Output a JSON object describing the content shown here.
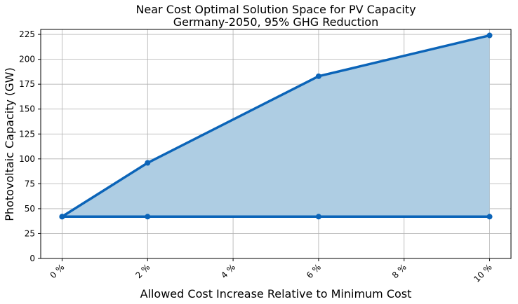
{
  "chart_data": {
    "type": "area",
    "title_lines": [
      "Near Cost Optimal Solution Space for PV Capacity",
      "Germany-2050, 95% GHG Reduction"
    ],
    "xlabel": "Allowed Cost Increase Relative to Minimum Cost",
    "ylabel": "Photovoltaic Capacity (GW)",
    "xlim": [
      -0.5,
      10.5
    ],
    "ylim": [
      0,
      230
    ],
    "x_ticks": [
      0,
      2,
      4,
      6,
      8,
      10
    ],
    "x_tick_labels": [
      "0 %",
      "2 %",
      "4 %",
      "6 %",
      "8 %",
      "10 %"
    ],
    "y_ticks": [
      0,
      25,
      50,
      75,
      100,
      125,
      150,
      175,
      200,
      225
    ],
    "y_tick_labels": [
      "0",
      "25",
      "50",
      "75",
      "100",
      "125",
      "150",
      "175",
      "200",
      "225"
    ],
    "grid": true,
    "series": [
      {
        "x": [
          0,
          2,
          6,
          10
        ],
        "values": [
          42,
          96,
          183,
          224
        ]
      },
      {
        "x": [
          0,
          2,
          6,
          10
        ],
        "values": [
          42,
          42,
          42,
          42
        ]
      }
    ],
    "colors": {
      "line": "#0b64b8",
      "fill": "#aecde3",
      "grid": "#b0b0b0",
      "axis": "#000000"
    }
  }
}
